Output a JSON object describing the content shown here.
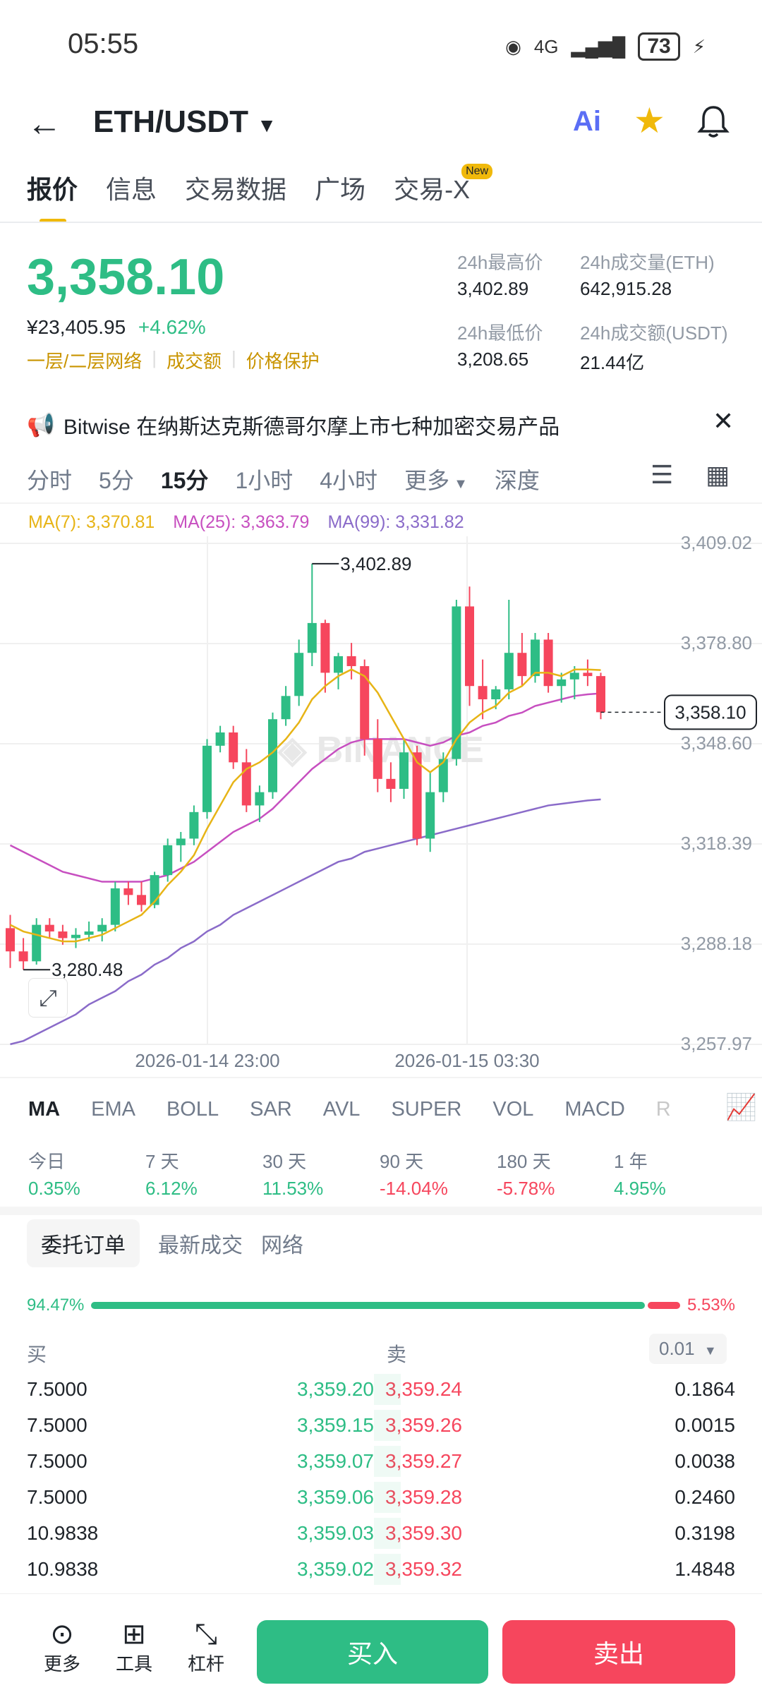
{
  "status": {
    "time": "05:55",
    "signal": "4G",
    "battery": "73"
  },
  "header": {
    "pair": "ETH/USDT",
    "ai_label": "Ai"
  },
  "tabs": [
    {
      "label": "报价"
    },
    {
      "label": "信息"
    },
    {
      "label": "交易数据"
    },
    {
      "label": "广场"
    },
    {
      "label": "交易-X"
    }
  ],
  "new_badge": "New",
  "price": {
    "last": "3,358.10",
    "cny": "¥23,405.95",
    "change": "+4.62%",
    "tag1": "一层/二层网络",
    "tag2": "成交额",
    "tag3": "价格保护"
  },
  "stats": {
    "high_label": "24h最高价",
    "high": "3,402.89",
    "vol_label": "24h成交量(ETH)",
    "vol": "642,915.28",
    "low_label": "24h最低价",
    "low": "3,208.65",
    "amt_label": "24h成交额(USDT)",
    "amt": "21.44亿"
  },
  "ticker": "Bitwise 在纳斯达克斯德哥尔摩上市七种加密交易产品",
  "intervals": [
    "分时",
    "5分",
    "15分",
    "1小时",
    "4小时",
    "更多",
    "深度"
  ],
  "ma": {
    "ma7": "MA(7): 3,370.81",
    "ma25": "MA(25): 3,363.79",
    "ma99": "MA(99): 3,331.82"
  },
  "chart_data": {
    "type": "candlestick",
    "y_ticks": [
      "3,409.02",
      "3,378.80",
      "3,348.60",
      "3,318.39",
      "3,288.18",
      "3,257.97"
    ],
    "ylim": [
      3257.97,
      3409.02
    ],
    "x_ticks": [
      "2026-01-14 23:00",
      "2026-01-15 03:30"
    ],
    "last_price_label": "3,358.10",
    "max_label": "3,402.89",
    "min_label": "3,280.48",
    "watermark": "BINANCE",
    "candles": [
      [
        3293,
        3297,
        3281,
        3286
      ],
      [
        3286,
        3290,
        3280.48,
        3283
      ],
      [
        3283,
        3296,
        3282,
        3294
      ],
      [
        3294,
        3296,
        3290,
        3292
      ],
      [
        3292,
        3294,
        3288,
        3290
      ],
      [
        3290,
        3293,
        3287,
        3291
      ],
      [
        3291,
        3295,
        3289,
        3292
      ],
      [
        3292,
        3296,
        3289,
        3294
      ],
      [
        3294,
        3307,
        3292,
        3305
      ],
      [
        3305,
        3307,
        3300,
        3303
      ],
      [
        3303,
        3307,
        3298,
        3300
      ],
      [
        3300,
        3310,
        3299,
        3309
      ],
      [
        3309,
        3320,
        3307,
        3318
      ],
      [
        3318,
        3322,
        3313,
        3320
      ],
      [
        3320,
        3330,
        3318,
        3328
      ],
      [
        3328,
        3350,
        3326,
        3348
      ],
      [
        3348,
        3354,
        3346,
        3352
      ],
      [
        3352,
        3354,
        3341,
        3343
      ],
      [
        3343,
        3347,
        3328,
        3330
      ],
      [
        3330,
        3336,
        3325,
        3334
      ],
      [
        3334,
        3358,
        3332,
        3356
      ],
      [
        3356,
        3366,
        3354,
        3363
      ],
      [
        3363,
        3380,
        3360,
        3376
      ],
      [
        3376,
        3402.89,
        3372,
        3385
      ],
      [
        3385,
        3386,
        3364,
        3370
      ],
      [
        3370,
        3376,
        3365,
        3375
      ],
      [
        3375,
        3379,
        3368,
        3372
      ],
      [
        3372,
        3374,
        3345,
        3350
      ],
      [
        3350,
        3356,
        3334,
        3338
      ],
      [
        3338,
        3343,
        3331,
        3335
      ],
      [
        3335,
        3350,
        3332,
        3346
      ],
      [
        3346,
        3348,
        3318,
        3320
      ],
      [
        3320,
        3340,
        3316,
        3334
      ],
      [
        3334,
        3346,
        3331,
        3344
      ],
      [
        3344,
        3392,
        3342,
        3390
      ],
      [
        3390,
        3396,
        3360,
        3366
      ],
      [
        3366,
        3374,
        3356,
        3362
      ],
      [
        3362,
        3366,
        3359,
        3365
      ],
      [
        3365,
        3392,
        3362,
        3376
      ],
      [
        3376,
        3382,
        3366,
        3369
      ],
      [
        3369,
        3382,
        3367,
        3380
      ],
      [
        3380,
        3382,
        3364,
        3366
      ],
      [
        3366,
        3370,
        3361,
        3368
      ],
      [
        3368,
        3372,
        3362,
        3370
      ],
      [
        3370,
        3374,
        3366,
        3369
      ],
      [
        3369,
        3370,
        3356,
        3358.1
      ]
    ],
    "ma7": [
      3294,
      3292,
      3291,
      3290,
      3289,
      3289,
      3290,
      3291,
      3293,
      3295,
      3297,
      3301,
      3306,
      3310,
      3315,
      3323,
      3330,
      3337,
      3341,
      3343,
      3346,
      3350,
      3355,
      3362,
      3366,
      3369,
      3371,
      3369,
      3364,
      3357,
      3350,
      3343,
      3340,
      3343,
      3350,
      3355,
      3358,
      3360,
      3364,
      3366,
      3370,
      3370,
      3369,
      3371,
      3371,
      3370.81
    ],
    "ma25": [
      3318,
      3316,
      3314,
      3312,
      3310,
      3309,
      3308,
      3307,
      3307,
      3307,
      3307,
      3308,
      3309,
      3311,
      3313,
      3316,
      3319,
      3322,
      3324,
      3326,
      3329,
      3333,
      3337,
      3341,
      3344,
      3347,
      3349,
      3350,
      3350,
      3350,
      3350,
      3349,
      3348,
      3349,
      3351,
      3352,
      3354,
      3355,
      3357,
      3358,
      3360,
      3361,
      3362,
      3363,
      3363.5,
      3363.79
    ],
    "ma99": [
      3258,
      3259,
      3261,
      3263,
      3265,
      3267,
      3270,
      3272,
      3274,
      3277,
      3279,
      3282,
      3284,
      3287,
      3289,
      3292,
      3294,
      3297,
      3299,
      3301,
      3303,
      3305,
      3307,
      3309,
      3311,
      3313,
      3314,
      3316,
      3317,
      3318,
      3319,
      3320,
      3321,
      3322,
      3323,
      3324,
      3325,
      3326,
      3327,
      3328,
      3329,
      3330,
      3330.5,
      3331,
      3331.5,
      3331.82
    ]
  },
  "indicators": [
    "MA",
    "EMA",
    "BOLL",
    "SAR",
    "AVL",
    "SUPER",
    "VOL",
    "MACD",
    "R"
  ],
  "performance": [
    {
      "label": "今日",
      "value": "0.35%",
      "color": "#2ebd85"
    },
    {
      "label": "7 天",
      "value": "6.12%",
      "color": "#2ebd85"
    },
    {
      "label": "30 天",
      "value": "11.53%",
      "color": "#2ebd85"
    },
    {
      "label": "90 天",
      "value": "-14.04%",
      "color": "#f6465d"
    },
    {
      "label": "180 天",
      "value": "-5.78%",
      "color": "#f6465d"
    },
    {
      "label": "1 年",
      "value": "4.95%",
      "color": "#2ebd85"
    }
  ],
  "orderbook": {
    "tabs": [
      "委托订单",
      "最新成交",
      "网络"
    ],
    "buy_ratio": "94.47%",
    "sell_ratio": "5.53%",
    "buy_fraction": 0.9447,
    "buy_label": "买",
    "sell_label": "卖",
    "precision": "0.01",
    "rows": [
      {
        "bid_qty": "7.5000",
        "bid": "3,359.20",
        "ask": "3,359.24",
        "ask_qty": "0.1864"
      },
      {
        "bid_qty": "7.5000",
        "bid": "3,359.15",
        "ask": "3,359.26",
        "ask_qty": "0.0015"
      },
      {
        "bid_qty": "7.5000",
        "bid": "3,359.07",
        "ask": "3,359.27",
        "ask_qty": "0.0038"
      },
      {
        "bid_qty": "7.5000",
        "bid": "3,359.06",
        "ask": "3,359.28",
        "ask_qty": "0.2460"
      },
      {
        "bid_qty": "10.9838",
        "bid": "3,359.03",
        "ask": "3,359.30",
        "ask_qty": "0.3198"
      },
      {
        "bid_qty": "10.9838",
        "bid": "3,359.02",
        "ask": "3,359.32",
        "ask_qty": "1.4848"
      }
    ]
  },
  "bottom": {
    "more": "更多",
    "tools": "工具",
    "leverage": "杠杆",
    "buy": "买入",
    "sell": "卖出"
  }
}
